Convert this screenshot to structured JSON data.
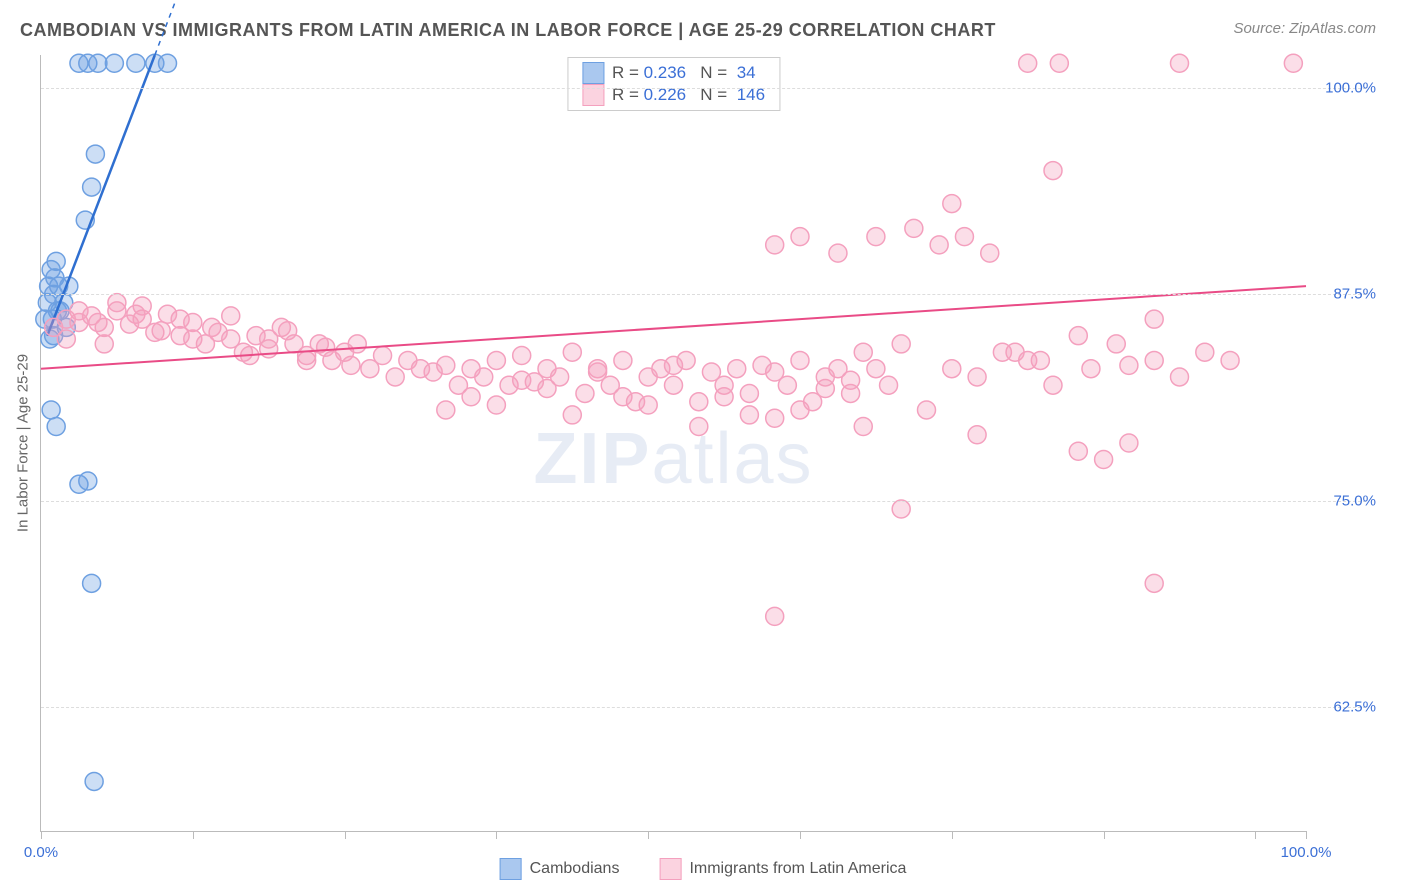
{
  "title": "CAMBODIAN VS IMMIGRANTS FROM LATIN AMERICA IN LABOR FORCE | AGE 25-29 CORRELATION CHART",
  "source": "Source: ZipAtlas.com",
  "ylabel": "In Labor Force | Age 25-29",
  "watermark_bold": "ZIP",
  "watermark_rest": "atlas",
  "chart": {
    "type": "scatter",
    "xlim": [
      0,
      100
    ],
    "ylim": [
      55,
      102
    ],
    "xticks": [
      0,
      12,
      24,
      36,
      48,
      60,
      72,
      84,
      96,
      100
    ],
    "xtick_labels": {
      "0": "0.0%",
      "100": "100.0%"
    },
    "yticks": [
      62.5,
      75,
      87.5,
      100
    ],
    "ytick_labels": [
      "62.5%",
      "75.0%",
      "87.5%",
      "100.0%"
    ],
    "background_color": "#ffffff",
    "grid_color": "#dddddd",
    "series": [
      {
        "name": "Cambodians",
        "color_fill": "rgba(110,160,225,0.35)",
        "color_stroke": "#6ea0e1",
        "swatch_fill": "#aac8ef",
        "swatch_border": "#6ea0e1",
        "marker_radius": 9,
        "R": "0.236",
        "N": "34",
        "trend": {
          "x1": 0.5,
          "y1": 85,
          "x2": 9,
          "y2": 102,
          "stroke": "#2f6fd0",
          "width": 2.5,
          "dash_ext_x": 13
        },
        "points": [
          [
            0.3,
            86
          ],
          [
            0.5,
            87
          ],
          [
            0.6,
            88
          ],
          [
            0.8,
            89
          ],
          [
            0.9,
            86
          ],
          [
            1.0,
            87.5
          ],
          [
            1.1,
            88.5
          ],
          [
            1.2,
            89.5
          ],
          [
            1.3,
            86.5
          ],
          [
            1.4,
            88
          ],
          [
            1.0,
            85
          ],
          [
            1.5,
            86.5
          ],
          [
            2,
            85.5
          ],
          [
            0.7,
            84.8
          ],
          [
            1.8,
            87
          ],
          [
            2.2,
            88
          ],
          [
            3,
            101.5
          ],
          [
            3.7,
            101.5
          ],
          [
            4.5,
            101.5
          ],
          [
            5.8,
            101.5
          ],
          [
            7.5,
            101.5
          ],
          [
            9,
            101.5
          ],
          [
            10,
            101.5
          ],
          [
            4,
            94
          ],
          [
            4.3,
            96
          ],
          [
            3.5,
            92
          ],
          [
            0.8,
            80.5
          ],
          [
            1.2,
            79.5
          ],
          [
            3,
            76
          ],
          [
            3.7,
            76.2
          ],
          [
            4,
            70
          ],
          [
            4.2,
            58
          ]
        ]
      },
      {
        "name": "Immigrants from Latin America",
        "color_fill": "rgba(244,160,190,0.35)",
        "color_stroke": "#f4a0be",
        "swatch_fill": "#fbd3e0",
        "swatch_border": "#f4a0be",
        "marker_radius": 9,
        "R": "0.226",
        "N": "146",
        "trend": {
          "x1": 0,
          "y1": 83,
          "x2": 100,
          "y2": 88,
          "stroke": "#e94b86",
          "width": 2
        },
        "points": [
          [
            1,
            85.5
          ],
          [
            2,
            86
          ],
          [
            3,
            85.8
          ],
          [
            4,
            86.2
          ],
          [
            5,
            85.5
          ],
          [
            6,
            86.5
          ],
          [
            7,
            85.7
          ],
          [
            8,
            86
          ],
          [
            9,
            85.2
          ],
          [
            10,
            86.3
          ],
          [
            11,
            85
          ],
          [
            12,
            85.8
          ],
          [
            13,
            84.5
          ],
          [
            14,
            85.2
          ],
          [
            15,
            84.8
          ],
          [
            16,
            84
          ],
          [
            17,
            85
          ],
          [
            18,
            84.2
          ],
          [
            19,
            85.5
          ],
          [
            20,
            84.5
          ],
          [
            21,
            83.8
          ],
          [
            22,
            84.5
          ],
          [
            23,
            83.5
          ],
          [
            24,
            84
          ],
          [
            24.5,
            83.2
          ],
          [
            25,
            84.5
          ],
          [
            26,
            83
          ],
          [
            27,
            83.8
          ],
          [
            28,
            82.5
          ],
          [
            29,
            83.5
          ],
          [
            30,
            83
          ],
          [
            31,
            82.8
          ],
          [
            32,
            83.2
          ],
          [
            33,
            82
          ],
          [
            34,
            83
          ],
          [
            35,
            82.5
          ],
          [
            36,
            83.5
          ],
          [
            37,
            82
          ],
          [
            38,
            83.8
          ],
          [
            39,
            82.2
          ],
          [
            40,
            83
          ],
          [
            41,
            82.5
          ],
          [
            42,
            84
          ],
          [
            43,
            81.5
          ],
          [
            44,
            83
          ],
          [
            45,
            82
          ],
          [
            46,
            83.5
          ],
          [
            47,
            81
          ],
          [
            48,
            82.5
          ],
          [
            49,
            83
          ],
          [
            50,
            82
          ],
          [
            51,
            83.5
          ],
          [
            52,
            81
          ],
          [
            53,
            82.8
          ],
          [
            54,
            82
          ],
          [
            55,
            83
          ],
          [
            56,
            81.5
          ],
          [
            57,
            83.2
          ],
          [
            58,
            80
          ],
          [
            59,
            82
          ],
          [
            60,
            83.5
          ],
          [
            61,
            81
          ],
          [
            62,
            82.5
          ],
          [
            63,
            83
          ],
          [
            64,
            81.5
          ],
          [
            65,
            84
          ],
          [
            66,
            83
          ],
          [
            67,
            82
          ],
          [
            68,
            84.5
          ],
          [
            58,
            90.5
          ],
          [
            60,
            91
          ],
          [
            63,
            90
          ],
          [
            66,
            91
          ],
          [
            69,
            91.5
          ],
          [
            71,
            90.5
          ],
          [
            73,
            91
          ],
          [
            75,
            90
          ],
          [
            77,
            84
          ],
          [
            79,
            83.5
          ],
          [
            68,
            74.5
          ],
          [
            58,
            68
          ],
          [
            72,
            83
          ],
          [
            74,
            82.5
          ],
          [
            76,
            84
          ],
          [
            78,
            83.5
          ],
          [
            80,
            82
          ],
          [
            82,
            85
          ],
          [
            83,
            83
          ],
          [
            85,
            84.5
          ],
          [
            86,
            83.2
          ],
          [
            88,
            86
          ],
          [
            80,
            95
          ],
          [
            82,
            78
          ],
          [
            84,
            77.5
          ],
          [
            86,
            78.5
          ],
          [
            88,
            83.5
          ],
          [
            88,
            70
          ],
          [
            90,
            82.5
          ],
          [
            92,
            84
          ],
          [
            94,
            83.5
          ],
          [
            78,
            101.5
          ],
          [
            80.5,
            101.5
          ],
          [
            90,
            101.5
          ],
          [
            99,
            101.5
          ],
          [
            65,
            79.5
          ],
          [
            70,
            80.5
          ],
          [
            74,
            79
          ],
          [
            72,
            93
          ],
          [
            3,
            86.5
          ],
          [
            4.5,
            85.8
          ],
          [
            6,
            87
          ],
          [
            7.5,
            86.3
          ],
          [
            2,
            84.8
          ],
          [
            5,
            84.5
          ],
          [
            8,
            86.8
          ],
          [
            9.5,
            85.3
          ],
          [
            11,
            86
          ],
          [
            12,
            84.8
          ],
          [
            13.5,
            85.5
          ],
          [
            15,
            86.2
          ],
          [
            16.5,
            83.8
          ],
          [
            18,
            84.8
          ],
          [
            19.5,
            85.3
          ],
          [
            21,
            83.5
          ],
          [
            22.5,
            84.3
          ],
          [
            32,
            80.5
          ],
          [
            34,
            81.3
          ],
          [
            36,
            80.8
          ],
          [
            38,
            82.3
          ],
          [
            40,
            81.8
          ],
          [
            42,
            80.2
          ],
          [
            44,
            82.8
          ],
          [
            46,
            81.3
          ],
          [
            48,
            80.8
          ],
          [
            50,
            83.2
          ],
          [
            52,
            79.5
          ],
          [
            54,
            81.3
          ],
          [
            56,
            80.2
          ],
          [
            58,
            82.8
          ],
          [
            60,
            80.5
          ],
          [
            62,
            81.8
          ],
          [
            64,
            82.3
          ]
        ]
      }
    ]
  },
  "legend_bottom": [
    {
      "label": "Cambodians",
      "fill": "#aac8ef",
      "border": "#6ea0e1"
    },
    {
      "label": "Immigrants from Latin America",
      "fill": "#fbd3e0",
      "border": "#f4a0be"
    }
  ]
}
